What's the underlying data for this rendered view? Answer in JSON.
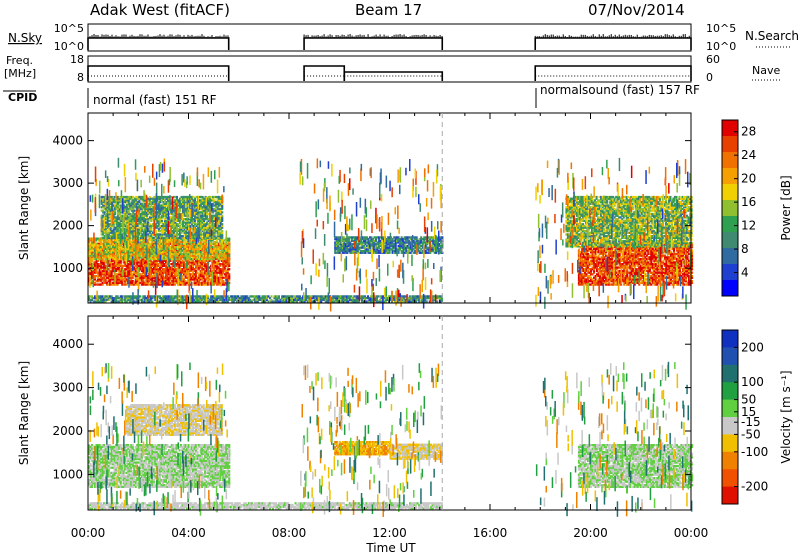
{
  "header": {
    "station": "Adak West (fitACF)",
    "beam": "Beam 17",
    "date": "07/Nov/2014"
  },
  "panels": {
    "nsky_label": "N.Sky",
    "nsearch_label": "N.Search",
    "freq_label": "Freq.",
    "freq_unit": "[MHz]",
    "nave_label": "Nave",
    "cpid_label": "CPID",
    "nsky_ticks": [
      "10^5",
      "10^0"
    ],
    "nsearch_ticks": [
      "10^5",
      "10^0"
    ],
    "freq_ticks": [
      "18",
      "8"
    ],
    "nave_ticks": [
      "60",
      "0"
    ],
    "cpid_left": "normal (fast) 151 RF",
    "cpid_right": "normalsound (fast) 157 RF"
  },
  "colors": {
    "power_scale": [
      "#0000ff",
      "#1f3fd0",
      "#2f6aa0",
      "#3f8a70",
      "#2fa050",
      "#90c030",
      "#f0d000",
      "#f5a000",
      "#f07000",
      "#e84000",
      "#e00000"
    ],
    "velocity_scale": [
      "#1030c0",
      "#2050b0",
      "#207070",
      "#20a040",
      "#60d040",
      "#c8c8c8",
      "#f0c000",
      "#f08000",
      "#f05000",
      "#e01000"
    ]
  },
  "chart_data": [
    {
      "type": "heatmap",
      "name": "power",
      "xlabel": "Time UT",
      "ylabel": "Slant Range [km]",
      "xticks": [
        "00:00",
        "04:00",
        "08:00",
        "12:00",
        "16:00",
        "20:00",
        "00:00"
      ],
      "xlim_hours": [
        0,
        24
      ],
      "ylim_km": [
        180,
        4650
      ],
      "yticks": [
        1000,
        2000,
        3000,
        4000
      ],
      "colorbar_label": "Power [dB]",
      "colorbar_ticks": [
        4,
        8,
        12,
        16,
        20,
        24,
        28
      ],
      "colorbar_range": [
        0,
        30
      ],
      "dashed_line_hour": 14.1,
      "regions": [
        {
          "t0": 0.0,
          "t1": 5.6,
          "r0": 600,
          "r1": 1600,
          "level": 26
        },
        {
          "t0": 0.0,
          "t1": 5.6,
          "r0": 1200,
          "r1": 1700,
          "level": 18
        },
        {
          "t0": 0.5,
          "t1": 5.3,
          "r0": 1700,
          "r1": 2700,
          "level": 12
        },
        {
          "t0": 9.8,
          "t1": 14.1,
          "r0": 1350,
          "r1": 1750,
          "level": 9
        },
        {
          "t0": 19.5,
          "t1": 24.0,
          "r0": 600,
          "r1": 1600,
          "level": 26
        },
        {
          "t0": 19.0,
          "t1": 24.0,
          "r0": 1500,
          "r1": 2700,
          "level": 14
        },
        {
          "t0": 0.0,
          "t1": 14.1,
          "r0": 200,
          "r1": 350,
          "level": 10
        }
      ]
    },
    {
      "type": "heatmap",
      "name": "velocity",
      "xlabel": "Time UT",
      "ylabel": "Slant Range [km]",
      "xticks": [
        "00:00",
        "04:00",
        "08:00",
        "12:00",
        "16:00",
        "20:00",
        "00:00"
      ],
      "xlim_hours": [
        0,
        24
      ],
      "ylim_km": [
        180,
        4650
      ],
      "yticks": [
        1000,
        2000,
        3000,
        4000
      ],
      "colorbar_label": "Velocity [m s⁻¹]",
      "colorbar_ticks": [
        200,
        100,
        50,
        15,
        -15,
        -50,
        -100,
        -200
      ],
      "colorbar_range": [
        -250,
        250
      ],
      "dashed_line_hour": 14.1,
      "regions": [
        {
          "t0": 0.0,
          "t1": 5.6,
          "r0": 700,
          "r1": 1700,
          "level": 0
        },
        {
          "t0": 1.5,
          "t1": 5.3,
          "r0": 1900,
          "r1": 2600,
          "level": -40
        },
        {
          "t0": 9.8,
          "t1": 12.0,
          "r0": 1450,
          "r1": 1750,
          "level": -90
        },
        {
          "t0": 12.0,
          "t1": 14.1,
          "r0": 1350,
          "r1": 1700,
          "level": -45
        },
        {
          "t0": 19.5,
          "t1": 24.0,
          "r0": 700,
          "r1": 1700,
          "level": 0
        },
        {
          "t0": 0.0,
          "t1": 14.1,
          "r0": 200,
          "r1": 350,
          "level": -20
        }
      ]
    }
  ]
}
